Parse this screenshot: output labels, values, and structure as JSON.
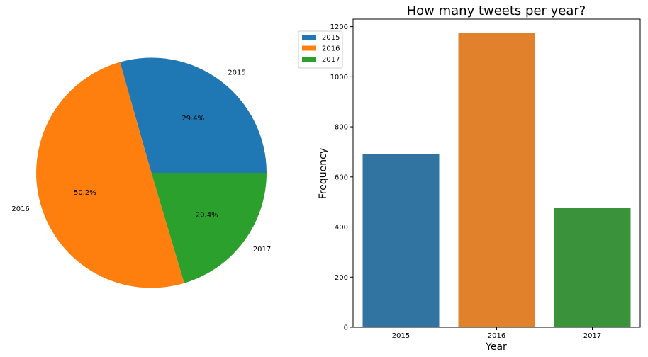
{
  "chart_data": [
    {
      "type": "pie",
      "title": "",
      "labels": [
        "2015",
        "2016",
        "2017"
      ],
      "values": [
        29.4,
        50.2,
        20.4
      ],
      "autopct_labels": [
        "29.4%",
        "50.2%",
        "20.4%"
      ],
      "colors": [
        "#1f77b4",
        "#ff7f0e",
        "#2ca02c"
      ],
      "start_angle_deg": 0,
      "direction": "counterclockwise",
      "legend": {
        "entries": [
          "2015",
          "2016",
          "2017"
        ],
        "colors": [
          "#1f77b4",
          "#ff7f0e",
          "#2ca02c"
        ],
        "placement": "upper-left, between panels"
      }
    },
    {
      "type": "bar",
      "title": "How many tweets per year?",
      "xlabel": "Year",
      "ylabel": "Frequency",
      "categories": [
        "2015",
        "2016",
        "2017"
      ],
      "values": [
        690,
        1175,
        475
      ],
      "colors": [
        "#3274a1",
        "#e1812c",
        "#3a923a"
      ],
      "ylim": [
        0,
        1230
      ],
      "yticks": [
        0,
        200,
        400,
        600,
        800,
        1000,
        1200
      ],
      "grid": false
    }
  ]
}
